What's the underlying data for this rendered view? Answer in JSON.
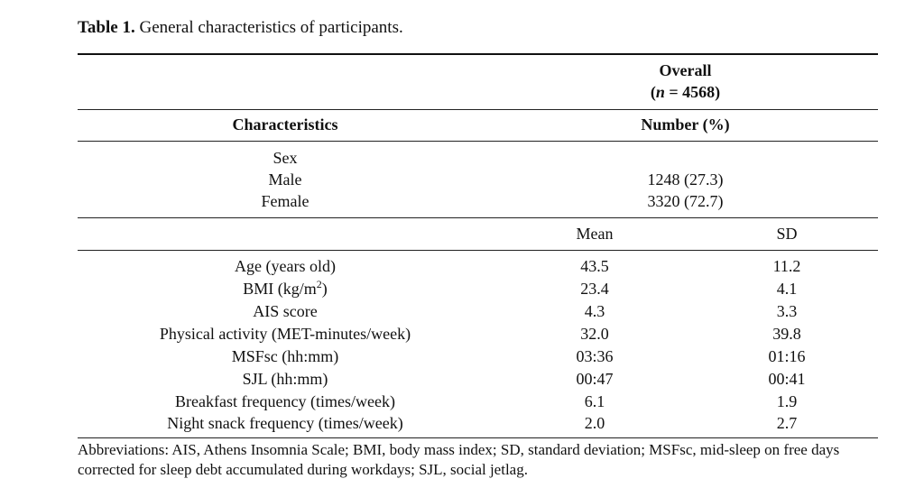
{
  "caption": {
    "label": "Table 1.",
    "text": " General characteristics of participants."
  },
  "header": {
    "overall": "Overall",
    "n_symbol": "n",
    "n_value": " = 4568)",
    "n_open": "(",
    "characteristics": "Characteristics",
    "number_pct": "Number (%)"
  },
  "sex": {
    "title": "Sex",
    "rows": [
      {
        "label": "Male",
        "value": "1248 (27.3)"
      },
      {
        "label": "Female",
        "value": "3320 (72.7)"
      }
    ]
  },
  "stats_header": {
    "mean": "Mean",
    "sd": "SD"
  },
  "stats": [
    {
      "label": "Age (years old)",
      "mean": "43.5",
      "sd": "11.2"
    },
    {
      "label": "BMI (kg/m",
      "sup": "2",
      "label_end": ")",
      "mean": "23.4",
      "sd": "4.1"
    },
    {
      "label": "AIS score",
      "mean": "4.3",
      "sd": "3.3"
    },
    {
      "label": "Physical activity (MET-minutes/week)",
      "mean": "32.0",
      "sd": "39.8"
    },
    {
      "label": "MSFsc (hh:mm)",
      "mean": "03:36",
      "sd": "01:16"
    },
    {
      "label": "SJL (hh:mm)",
      "mean": "00:47",
      "sd": "00:41"
    },
    {
      "label": "Breakfast frequency (times/week)",
      "mean": "6.1",
      "sd": "1.9"
    },
    {
      "label": "Night snack frequency (times/week)",
      "mean": "2.0",
      "sd": "2.7"
    }
  ],
  "footnote": "Abbreviations: AIS, Athens Insomnia Scale; BMI, body mass index; SD, standard deviation; MSFsc, mid-sleep on free days corrected for sleep debt accumulated during workdays; SJL, social jetlag."
}
